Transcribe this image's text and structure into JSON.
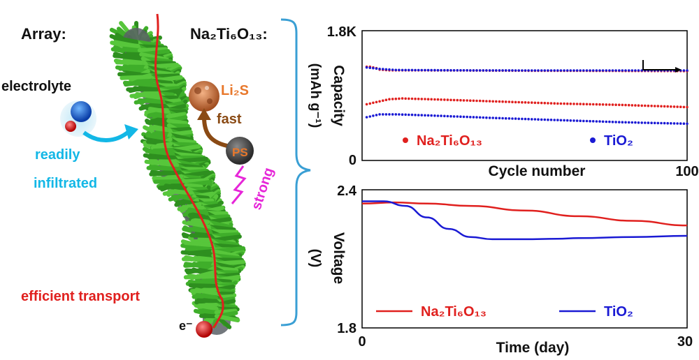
{
  "left_panel": {
    "array_label": "Array:",
    "material_label": "Na₂Ti₆O₁₃:",
    "electrolyte_label": "electrolyte",
    "readily_label": "readily",
    "infiltrated_label": "infiltrated",
    "li2s_label": "Li₂S",
    "fast_label": "fast",
    "ps_label": "PS",
    "strong_label": "strong",
    "transport_label": "efficient transport",
    "electron_label": "e⁻",
    "colors": {
      "nanorod": "#3fae2a",
      "core": "#555a5e",
      "transport": "#e0201e",
      "electrolyte": "#13b7e6",
      "li2s": "#e8782c",
      "fast": "#8a4a14",
      "strong": "#e626d8",
      "bracket": "#3a9fd4"
    }
  },
  "chart_data": [
    {
      "type": "scatter",
      "xlabel": "Cycle number",
      "ylabel": "Capacity",
      "ylabel_unit": "(mAh g⁻¹)",
      "xlim": [
        0,
        100
      ],
      "ylim": [
        0,
        1800
      ],
      "x_ticks": [
        "100"
      ],
      "y_ticks": [
        "1.8K",
        "0"
      ],
      "legend_position": "bottom",
      "series": [
        {
          "name": "Na₂Ti₆O₁₃",
          "role": "capacity",
          "color": "#e0201e",
          "start": 1300,
          "dip": 1240,
          "points": [
            [
              2,
              1300
            ],
            [
              4,
              1280
            ],
            [
              5,
              1260
            ],
            [
              8,
              1250
            ],
            [
              20,
              1250
            ],
            [
              50,
              1245
            ],
            [
              100,
              1240
            ]
          ]
        },
        {
          "name": "Na₂Ti₆O₁₃",
          "role": "capacity-low",
          "color": "#e0201e",
          "points": [
            [
              1,
              780
            ],
            [
              5,
              820
            ],
            [
              8,
              850
            ],
            [
              12,
              860
            ],
            [
              20,
              850
            ],
            [
              40,
              820
            ],
            [
              60,
              790
            ],
            [
              80,
              770
            ],
            [
              100,
              740
            ]
          ]
        },
        {
          "name": "TiO₂",
          "role": "capacity",
          "color": "#1a1ad4",
          "points": [
            [
              1,
              1290
            ],
            [
              5,
              1270
            ],
            [
              10,
              1255
            ],
            [
              30,
              1250
            ],
            [
              60,
              1248
            ],
            [
              100,
              1248
            ]
          ]
        },
        {
          "name": "TiO₂",
          "role": "capacity-low",
          "color": "#1a1ad4",
          "points": [
            [
              1,
              600
            ],
            [
              5,
              640
            ],
            [
              10,
              640
            ],
            [
              20,
              625
            ],
            [
              40,
              590
            ],
            [
              60,
              560
            ],
            [
              80,
              530
            ],
            [
              100,
              510
            ]
          ]
        }
      ],
      "annotation": "arrow-right"
    },
    {
      "type": "line",
      "xlabel": "Time (day)",
      "ylabel": "Voltage",
      "ylabel_unit": "(V)",
      "xlim": [
        0,
        30
      ],
      "ylim": [
        1.8,
        2.4
      ],
      "x_ticks": [
        "0",
        "30"
      ],
      "y_ticks": [
        "2.4",
        "1.8"
      ],
      "legend_position": "bottom",
      "series": [
        {
          "name": "Na₂Ti₆O₁₃",
          "color": "#e0201e",
          "x": [
            0,
            3,
            6,
            10,
            15,
            20,
            25,
            30
          ],
          "y": [
            2.34,
            2.345,
            2.34,
            2.33,
            2.31,
            2.285,
            2.265,
            2.245
          ]
        },
        {
          "name": "TiO₂",
          "color": "#1a1ad4",
          "x": [
            0,
            2,
            4,
            6,
            8,
            10,
            12,
            15,
            18,
            20,
            25,
            30
          ],
          "y": [
            2.35,
            2.35,
            2.33,
            2.28,
            2.23,
            2.195,
            2.185,
            2.185,
            2.187,
            2.19,
            2.195,
            2.2
          ]
        }
      ]
    }
  ]
}
